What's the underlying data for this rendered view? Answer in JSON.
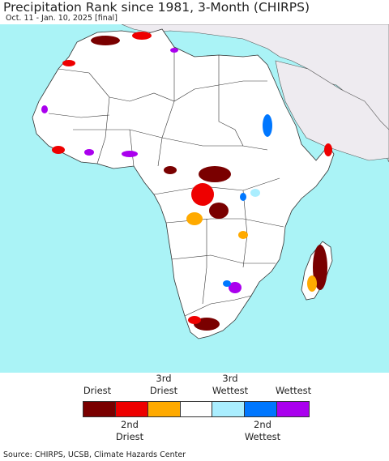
{
  "title": "Precipitation Rank since 1981, 3-Month (CHIRPS)",
  "subtitle": "Oct. 11 - Jan. 10, 2025 [final]",
  "legend": {
    "top_labels": [
      "Driest",
      "3rd Driest",
      "3rd Wettest",
      "Wettest"
    ],
    "bottom_labels": [
      "2nd Driest",
      "2nd Wettest"
    ],
    "colors": [
      "#7a0000",
      "#ee0000",
      "#ffaa00",
      "#ffffff",
      "#aaeeff",
      "#0077ff",
      "#aa00ee"
    ]
  },
  "source": "Source: CHIRPS, UCSB, Climate Hazards Center",
  "map": {
    "ocean_color": "#aaf3f6",
    "land_color": "#ffffff",
    "outside_land_color": "#eeebf0",
    "border_color": "#333333"
  }
}
